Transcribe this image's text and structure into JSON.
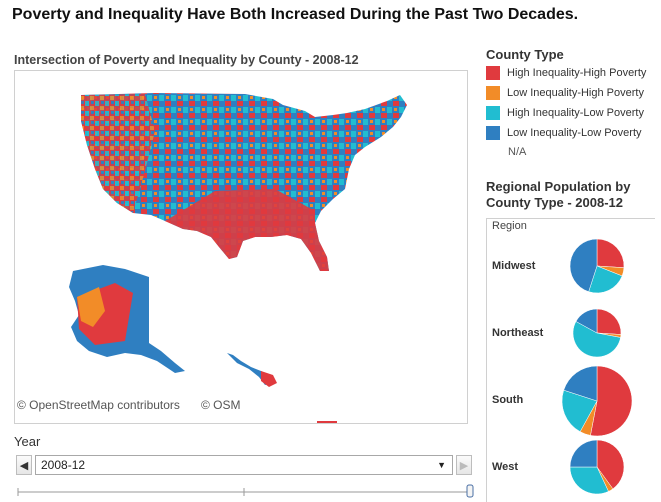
{
  "page": {
    "title": "Poverty and Inequality Have Both Increased During the Past Two Decades."
  },
  "map": {
    "title": "Intersection of Poverty and Inequality by County -  2008-12",
    "attribution_osm": "© OpenStreetMap contributors",
    "attribution_osm_short": "© OSM"
  },
  "legend": {
    "title": "County Type",
    "items": [
      {
        "label": "High Inequality-High Poverty",
        "color": "#e03a3e"
      },
      {
        "label": "Low Inequality-High Poverty",
        "color": "#f28c28"
      },
      {
        "label": "High Inequality-Low Poverty",
        "color": "#21bdd1"
      },
      {
        "label": "Low Inequality-Low Poverty",
        "color": "#2f7fc1"
      }
    ],
    "na_label": "N/A"
  },
  "regional": {
    "title": "Regional Population by County Type - 2008-12",
    "region_header": "Region",
    "regions": [
      "Midwest",
      "Northeast",
      "South",
      "West"
    ]
  },
  "year": {
    "label": "Year",
    "selected": "2008-12",
    "prev_icon": "chevron-left-icon",
    "next_icon": "chevron-right-icon",
    "dropdown_icon": "caret-down-icon"
  },
  "chart_data": {
    "type": "pie",
    "title": "Regional Population by County Type - 2008-12",
    "legend": [
      "High Inequality-High Poverty",
      "Low Inequality-High Poverty",
      "High Inequality-Low Poverty",
      "Low Inequality-Low Poverty"
    ],
    "series": [
      {
        "name": "Midwest",
        "values": [
          26,
          5,
          24,
          45
        ]
      },
      {
        "name": "Northeast",
        "values": [
          26,
          2,
          55,
          17
        ]
      },
      {
        "name": "South",
        "values": [
          53,
          5,
          22,
          20
        ]
      },
      {
        "name": "West",
        "values": [
          40,
          3,
          32,
          25
        ]
      }
    ]
  }
}
